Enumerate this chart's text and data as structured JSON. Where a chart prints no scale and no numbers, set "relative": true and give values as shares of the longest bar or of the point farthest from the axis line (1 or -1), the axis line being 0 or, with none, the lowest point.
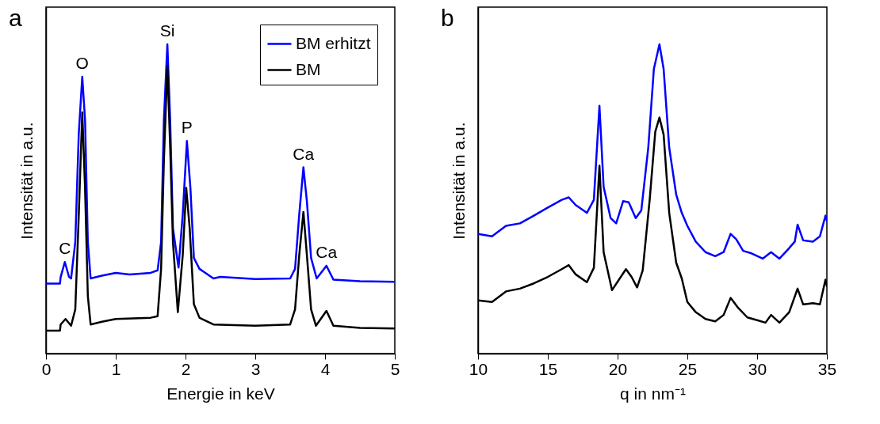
{
  "chart_data": [
    {
      "type": "line",
      "title": "a",
      "xlabel": "Energie in keV",
      "ylabel": "Intensität in a.u.",
      "relative": true,
      "xlim": [
        0,
        5
      ],
      "xticks": [
        0,
        1,
        2,
        3,
        4,
        5
      ],
      "grid": false,
      "legend": "top right",
      "series": [
        {
          "name": "BM erhitzt",
          "color": "#0000ff",
          "x": [
            0,
            0.2,
            0.21,
            0.27,
            0.33,
            0.36,
            0.42,
            0.47,
            0.52,
            0.56,
            0.6,
            0.64,
            0.8,
            1.0,
            1.2,
            1.5,
            1.6,
            1.65,
            1.69,
            1.74,
            1.78,
            1.82,
            1.9,
            1.96,
            2.02,
            2.07,
            2.12,
            2.2,
            2.4,
            2.5,
            3.0,
            3.5,
            3.57,
            3.63,
            3.69,
            3.74,
            3.8,
            3.88,
            4.02,
            4.12,
            4.5,
            5.0
          ],
          "values": [
            0.226,
            0.226,
            0.247,
            0.296,
            0.248,
            0.243,
            0.361,
            0.711,
            0.895,
            0.755,
            0.361,
            0.243,
            0.252,
            0.261,
            0.256,
            0.261,
            0.269,
            0.361,
            0.755,
            1.0,
            0.755,
            0.405,
            0.278,
            0.449,
            0.687,
            0.536,
            0.309,
            0.274,
            0.243,
            0.248,
            0.241,
            0.243,
            0.274,
            0.449,
            0.602,
            0.492,
            0.309,
            0.243,
            0.284,
            0.239,
            0.234,
            0.232
          ]
        },
        {
          "name": "BM",
          "color": "#000000",
          "x": [
            0,
            0.2,
            0.21,
            0.28,
            0.36,
            0.42,
            0.47,
            0.52,
            0.56,
            0.6,
            0.64,
            0.8,
            1.0,
            1.5,
            1.6,
            1.65,
            1.69,
            1.74,
            1.78,
            1.82,
            1.89,
            1.96,
            2.01,
            2.06,
            2.12,
            2.2,
            2.4,
            3.0,
            3.5,
            3.57,
            3.63,
            3.69,
            3.74,
            3.8,
            3.87,
            4.02,
            4.12,
            4.5,
            5.0
          ],
          "values": [
            0.074,
            0.074,
            0.094,
            0.112,
            0.09,
            0.143,
            0.449,
            0.78,
            0.536,
            0.186,
            0.094,
            0.103,
            0.112,
            0.116,
            0.121,
            0.274,
            0.624,
            0.93,
            0.668,
            0.361,
            0.134,
            0.318,
            0.536,
            0.405,
            0.16,
            0.116,
            0.094,
            0.09,
            0.094,
            0.143,
            0.318,
            0.458,
            0.318,
            0.143,
            0.09,
            0.138,
            0.09,
            0.083,
            0.081
          ]
        }
      ],
      "annotations": [
        {
          "text": "C",
          "x": 0.27,
          "y": 0.296
        },
        {
          "text": "O",
          "x": 0.52,
          "y": 0.895
        },
        {
          "text": "Si",
          "x": 1.74,
          "y": 1.0
        },
        {
          "text": "P",
          "x": 2.02,
          "y": 0.687
        },
        {
          "text": "Ca",
          "x": 3.69,
          "y": 0.602
        },
        {
          "text": "Ca",
          "x": 4.02,
          "y": 0.284
        }
      ]
    },
    {
      "type": "line",
      "title": "b",
      "xlabel": "q in nm⁻¹",
      "ylabel": "Intensität in a.u.",
      "relative": true,
      "xlim": [
        10,
        35
      ],
      "xticks": [
        10,
        15,
        20,
        25,
        30,
        35
      ],
      "grid": false,
      "series": [
        {
          "color": "#0000ff",
          "x": [
            10,
            11,
            12,
            13,
            14,
            15,
            16,
            16.5,
            17,
            17.8,
            18.3,
            18.7,
            19.0,
            19.5,
            19.9,
            20.4,
            20.8,
            21.3,
            21.7,
            22.2,
            22.6,
            23.0,
            23.3,
            23.7,
            24.2,
            24.6,
            25.0,
            25.6,
            26.3,
            27.0,
            27.6,
            28.1,
            28.5,
            29.0,
            29.6,
            30.4,
            31.0,
            31.6,
            32.2,
            32.7,
            32.9,
            33.3,
            34.0,
            34.5,
            34.9,
            35
          ],
          "values": [
            0.387,
            0.379,
            0.413,
            0.421,
            0.446,
            0.472,
            0.497,
            0.505,
            0.48,
            0.455,
            0.497,
            0.801,
            0.539,
            0.438,
            0.421,
            0.493,
            0.489,
            0.438,
            0.463,
            0.666,
            0.92,
            1.0,
            0.92,
            0.666,
            0.514,
            0.455,
            0.413,
            0.362,
            0.328,
            0.315,
            0.328,
            0.387,
            0.37,
            0.332,
            0.324,
            0.307,
            0.328,
            0.307,
            0.336,
            0.362,
            0.417,
            0.366,
            0.362,
            0.379,
            0.446,
            0.429
          ]
        },
        {
          "color": "#000000",
          "x": [
            10,
            11,
            12,
            13,
            14,
            15,
            16,
            16.5,
            17,
            17.8,
            18.3,
            18.7,
            19.0,
            19.6,
            20.1,
            20.6,
            21.0,
            21.4,
            21.8,
            22.3,
            22.7,
            23.0,
            23.3,
            23.7,
            24.2,
            24.6,
            25.0,
            25.6,
            26.3,
            27.0,
            27.6,
            28.1,
            28.6,
            29.3,
            30.0,
            30.6,
            31.0,
            31.6,
            32.3,
            32.9,
            33.3,
            34.0,
            34.5,
            34.9,
            35
          ],
          "values": [
            0.172,
            0.167,
            0.201,
            0.21,
            0.227,
            0.248,
            0.273,
            0.286,
            0.256,
            0.231,
            0.277,
            0.607,
            0.328,
            0.205,
            0.239,
            0.273,
            0.248,
            0.214,
            0.269,
            0.497,
            0.717,
            0.763,
            0.708,
            0.455,
            0.294,
            0.243,
            0.167,
            0.134,
            0.112,
            0.104,
            0.125,
            0.18,
            0.15,
            0.117,
            0.108,
            0.1,
            0.125,
            0.1,
            0.134,
            0.21,
            0.159,
            0.163,
            0.159,
            0.239,
            0.218
          ]
        }
      ]
    }
  ]
}
